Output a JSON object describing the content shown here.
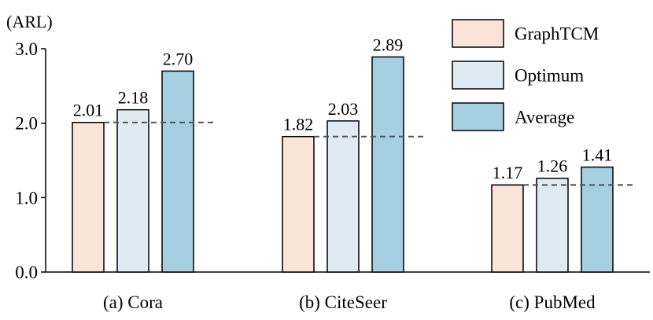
{
  "chart_data": {
    "type": "bar",
    "ylabel": "(ARL)",
    "ylim": [
      0,
      3.0
    ],
    "yticks": [
      "0.0",
      "1.0",
      "2.0",
      "3.0"
    ],
    "categories": [
      "(a) Cora",
      "(b) CiteSeer",
      "(c) PubMed"
    ],
    "series": [
      {
        "name": "GraphTCM",
        "color": "#fae3d7",
        "values": [
          2.01,
          1.82,
          1.17
        ],
        "labels": [
          "2.01",
          "1.82",
          "1.17"
        ]
      },
      {
        "name": "Optimum",
        "color": "#dfeaf2",
        "values": [
          2.18,
          2.03,
          1.26
        ],
        "labels": [
          "2.18",
          "2.03",
          "1.26"
        ]
      },
      {
        "name": "Average",
        "color": "#a7cfe2",
        "values": [
          2.7,
          2.89,
          1.41
        ],
        "labels": [
          "2.70",
          "2.89",
          "1.41"
        ]
      }
    ],
    "reference_line": {
      "style": "dashed",
      "color": "#555555",
      "series": "GraphTCM"
    },
    "legend": "top-right",
    "grid": false
  }
}
